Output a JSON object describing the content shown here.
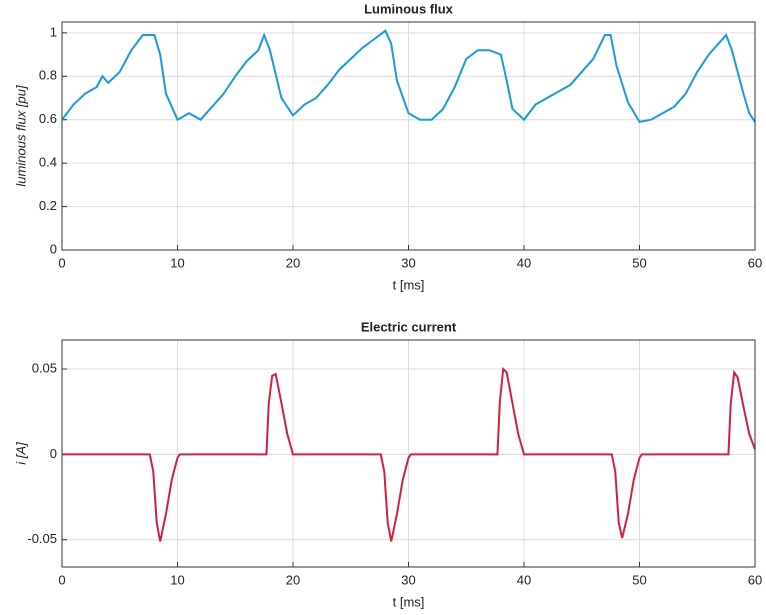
{
  "chart_data": [
    {
      "type": "line",
      "title": "Luminous flux",
      "xlabel": "t [ms]",
      "ylabel": "luminous flux [pu]",
      "color": "#1a9bd7",
      "grid": true,
      "xlim": [
        0,
        60
      ],
      "xticks": [
        0,
        10,
        20,
        30,
        40,
        50,
        60
      ],
      "ylim": [
        0,
        1.05
      ],
      "yticks": [
        0,
        0.2,
        0.4,
        0.6,
        0.8,
        1
      ],
      "x": [
        0,
        1,
        2,
        3,
        3.5,
        4,
        5,
        6,
        7,
        8,
        8.5,
        9,
        10,
        11,
        12,
        13,
        14,
        15,
        16,
        17,
        17.5,
        18,
        19,
        20,
        21,
        22,
        23,
        24,
        25,
        26,
        27,
        28,
        28.5,
        29,
        30,
        31,
        32,
        33,
        34,
        35,
        36,
        37,
        38,
        38.5,
        39,
        40,
        41,
        42,
        43,
        44,
        45,
        46,
        47,
        47.5,
        48,
        49,
        50,
        51,
        52,
        53,
        54,
        55,
        56,
        57,
        57.5,
        58,
        59,
        59.5,
        60
      ],
      "values": [
        0.6,
        0.67,
        0.72,
        0.75,
        0.8,
        0.77,
        0.82,
        0.92,
        0.99,
        0.99,
        0.9,
        0.72,
        0.6,
        0.63,
        0.6,
        0.66,
        0.72,
        0.8,
        0.87,
        0.92,
        0.99,
        0.92,
        0.7,
        0.62,
        0.67,
        0.7,
        0.76,
        0.83,
        0.88,
        0.93,
        0.97,
        1.01,
        0.95,
        0.78,
        0.63,
        0.6,
        0.6,
        0.65,
        0.75,
        0.88,
        0.92,
        0.92,
        0.9,
        0.78,
        0.65,
        0.6,
        0.67,
        0.7,
        0.73,
        0.76,
        0.82,
        0.88,
        0.99,
        0.99,
        0.85,
        0.68,
        0.59,
        0.6,
        0.63,
        0.66,
        0.72,
        0.82,
        0.9,
        0.96,
        0.99,
        0.92,
        0.72,
        0.63,
        0.59
      ]
    },
    {
      "type": "line",
      "title": "Electric current",
      "xlabel": "t [ms]",
      "ylabel": "i [A]",
      "color": "#d0203f",
      "grid": true,
      "xlim": [
        0,
        60
      ],
      "xticks": [
        0,
        10,
        20,
        30,
        40,
        50,
        60
      ],
      "ylim": [
        -0.066,
        0.067
      ],
      "yticks": [
        -0.05,
        0,
        0.05
      ],
      "x": [
        0,
        7.6,
        7.9,
        8.2,
        8.5,
        9,
        9.5,
        10,
        10.2,
        17.7,
        17.9,
        18.2,
        18.5,
        19,
        19.5,
        20,
        27.6,
        27.9,
        28.2,
        28.5,
        29,
        29.5,
        30,
        30.2,
        37.7,
        37.9,
        38.2,
        38.5,
        39,
        39.5,
        40,
        47.6,
        47.9,
        48.2,
        48.5,
        49,
        49.5,
        50,
        50.2,
        57.7,
        57.9,
        58.2,
        58.5,
        59,
        59.5,
        60
      ],
      "values": [
        0,
        0,
        -0.01,
        -0.04,
        -0.051,
        -0.035,
        -0.015,
        -0.002,
        0,
        0,
        0.03,
        0.046,
        0.047,
        0.03,
        0.012,
        0,
        0,
        -0.01,
        -0.04,
        -0.051,
        -0.035,
        -0.015,
        -0.002,
        0,
        0,
        0.03,
        0.05,
        0.048,
        0.03,
        0.012,
        0,
        0,
        -0.01,
        -0.04,
        -0.049,
        -0.035,
        -0.015,
        -0.002,
        0,
        0,
        0.03,
        0.048,
        0.045,
        0.028,
        0.012,
        0.003
      ]
    }
  ]
}
